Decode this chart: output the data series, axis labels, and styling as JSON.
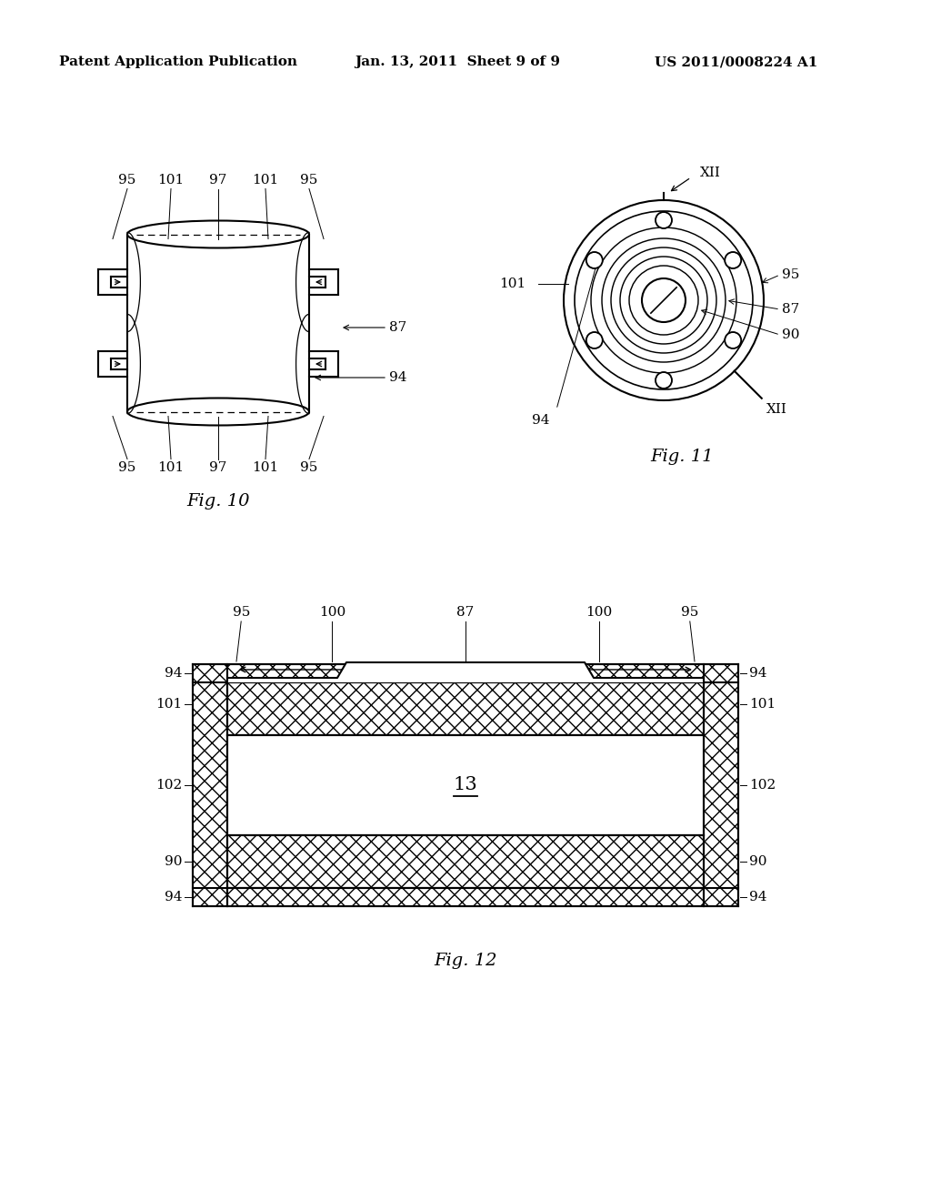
{
  "header_left": "Patent Application Publication",
  "header_mid": "Jan. 13, 2011  Sheet 9 of 9",
  "header_right": "US 2011/0008224 A1",
  "fig10_caption": "Fig. 10",
  "fig11_caption": "Fig. 11",
  "fig12_caption": "Fig. 12",
  "bg_color": "#ffffff",
  "line_color": "#000000",
  "label_fontsize": 11,
  "caption_fontsize": 14,
  "header_fontsize": 11
}
